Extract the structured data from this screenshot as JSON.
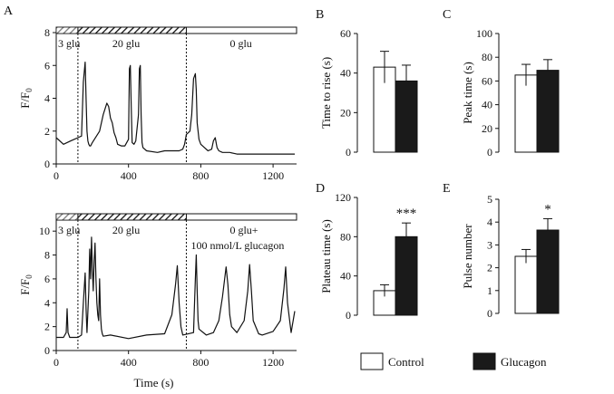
{
  "colors": {
    "ink": "#111111",
    "control_fill": "#ffffff",
    "glucagon_fill": "#1a1a1a"
  },
  "legend": {
    "control": "Control",
    "glucagon": "Glucagon"
  },
  "chart_data": [
    {
      "panel": "A",
      "type": "line",
      "subplot": "top",
      "ylabel": "F/F0",
      "ylim": [
        0,
        8
      ],
      "yticks": [
        0,
        2,
        4,
        6,
        8
      ],
      "xlim": [
        0,
        1330
      ],
      "xticks": [
        0,
        400,
        800,
        1200
      ],
      "protocol": {
        "glu3_label": "3 glu",
        "glu20_label": "20 glu",
        "glu0_label": "0 glu",
        "phase1_end": 120,
        "phase2_end": 720
      },
      "trace": {
        "x": [
          0,
          40,
          80,
          100,
          120,
          140,
          150,
          160,
          165,
          170,
          175,
          180,
          185,
          190,
          200,
          240,
          260,
          280,
          290,
          300,
          310,
          320,
          330,
          340,
          360,
          380,
          400,
          405,
          410,
          415,
          420,
          430,
          440,
          455,
          460,
          465,
          470,
          475,
          480,
          500,
          560,
          600,
          640,
          660,
          680,
          700,
          710,
          720,
          740,
          750,
          760,
          770,
          775,
          780,
          790,
          800,
          820,
          840,
          860,
          870,
          880,
          890,
          900,
          920,
          960,
          1000,
          1100,
          1200,
          1320
        ],
        "y": [
          1.6,
          1.2,
          1.4,
          1.5,
          1.6,
          1.7,
          5.0,
          6.2,
          4.0,
          2.0,
          1.4,
          1.2,
          1.1,
          1.1,
          1.3,
          2.0,
          3.0,
          3.7,
          3.5,
          2.8,
          2.5,
          1.9,
          1.6,
          1.2,
          1.1,
          1.1,
          1.5,
          5.8,
          6.0,
          3.5,
          1.3,
          1.2,
          1.4,
          3.0,
          5.8,
          6.0,
          3.0,
          1.3,
          1.0,
          0.8,
          0.7,
          0.8,
          0.8,
          0.8,
          0.8,
          0.9,
          1.2,
          1.8,
          2.0,
          3.0,
          5.2,
          5.5,
          4.5,
          2.5,
          1.5,
          1.2,
          1.0,
          0.8,
          0.9,
          1.4,
          1.6,
          1.0,
          0.8,
          0.7,
          0.7,
          0.6,
          0.6,
          0.6,
          0.6
        ]
      }
    },
    {
      "panel": "A",
      "type": "line",
      "subplot": "bottom",
      "ylabel": "F/F0",
      "xlabel": "Time (s)",
      "ylim": [
        0,
        11
      ],
      "yticks": [
        0,
        2,
        4,
        6,
        8,
        10
      ],
      "xlim": [
        0,
        1330
      ],
      "xticks": [
        0,
        400,
        800,
        1200
      ],
      "protocol": {
        "glu3_label": "3 glu",
        "glu20_label": "20 glu",
        "glu0_label": "0 glu+",
        "glucagon_label": "100 nmol/L glucagon",
        "phase1_end": 120,
        "phase2_end": 720
      },
      "trace": {
        "x": [
          0,
          40,
          55,
          60,
          65,
          75,
          120,
          140,
          150,
          160,
          165,
          170,
          180,
          185,
          190,
          195,
          200,
          205,
          210,
          215,
          220,
          225,
          230,
          235,
          240,
          245,
          250,
          255,
          260,
          300,
          400,
          500,
          600,
          640,
          660,
          670,
          680,
          690,
          700,
          760,
          770,
          775,
          780,
          785,
          790,
          830,
          870,
          900,
          920,
          940,
          950,
          960,
          970,
          1000,
          1040,
          1060,
          1070,
          1080,
          1090,
          1120,
          1140,
          1200,
          1240,
          1260,
          1270,
          1280,
          1300,
          1320
        ],
        "y": [
          1.1,
          1.1,
          1.5,
          3.5,
          1.5,
          1.1,
          1.1,
          1.3,
          4.0,
          6.5,
          3.5,
          1.5,
          5.0,
          8.5,
          6.0,
          9.5,
          7.0,
          5.0,
          7.5,
          9.0,
          6.0,
          4.0,
          3.0,
          2.5,
          6.0,
          3.0,
          1.8,
          1.4,
          1.2,
          1.3,
          1.0,
          1.3,
          1.4,
          3.0,
          5.5,
          7.1,
          4.0,
          2.0,
          1.3,
          1.5,
          6.0,
          8.0,
          5.0,
          2.5,
          1.8,
          1.3,
          1.5,
          2.5,
          4.5,
          7.0,
          5.5,
          3.0,
          2.0,
          1.5,
          2.5,
          5.0,
          7.2,
          5.0,
          2.5,
          1.4,
          1.3,
          1.6,
          2.5,
          5.2,
          7.0,
          4.0,
          1.5,
          3.3
        ]
      }
    },
    {
      "panel": "B",
      "type": "bar",
      "ylabel": "Time to rise (s)",
      "ylim": [
        0,
        60
      ],
      "yticks": [
        0,
        20,
        40,
        60
      ],
      "categories": [
        "Control",
        "Glucagon"
      ],
      "values": [
        43,
        36
      ],
      "errors": [
        8,
        8
      ],
      "significance": ""
    },
    {
      "panel": "C",
      "type": "bar",
      "ylabel": "Peak time (s)",
      "ylim": [
        0,
        100
      ],
      "yticks": [
        0,
        20,
        40,
        60,
        80,
        100
      ],
      "categories": [
        "Control",
        "Glucagon"
      ],
      "values": [
        65,
        69
      ],
      "errors": [
        9,
        9
      ],
      "significance": ""
    },
    {
      "panel": "D",
      "type": "bar",
      "ylabel": "Plateau time (s)",
      "ylim": [
        0,
        120
      ],
      "yticks": [
        0,
        40,
        80,
        120
      ],
      "categories": [
        "Control",
        "Glucagon"
      ],
      "values": [
        25,
        80
      ],
      "errors": [
        6,
        14
      ],
      "significance": "***"
    },
    {
      "panel": "E",
      "type": "bar",
      "ylabel": "Pulse number",
      "ylim": [
        0,
        5
      ],
      "yticks": [
        0,
        1,
        2,
        3,
        4,
        5
      ],
      "categories": [
        "Control",
        "Glucagon"
      ],
      "values": [
        2.5,
        3.65
      ],
      "errors": [
        0.3,
        0.5
      ],
      "significance": "*"
    }
  ]
}
